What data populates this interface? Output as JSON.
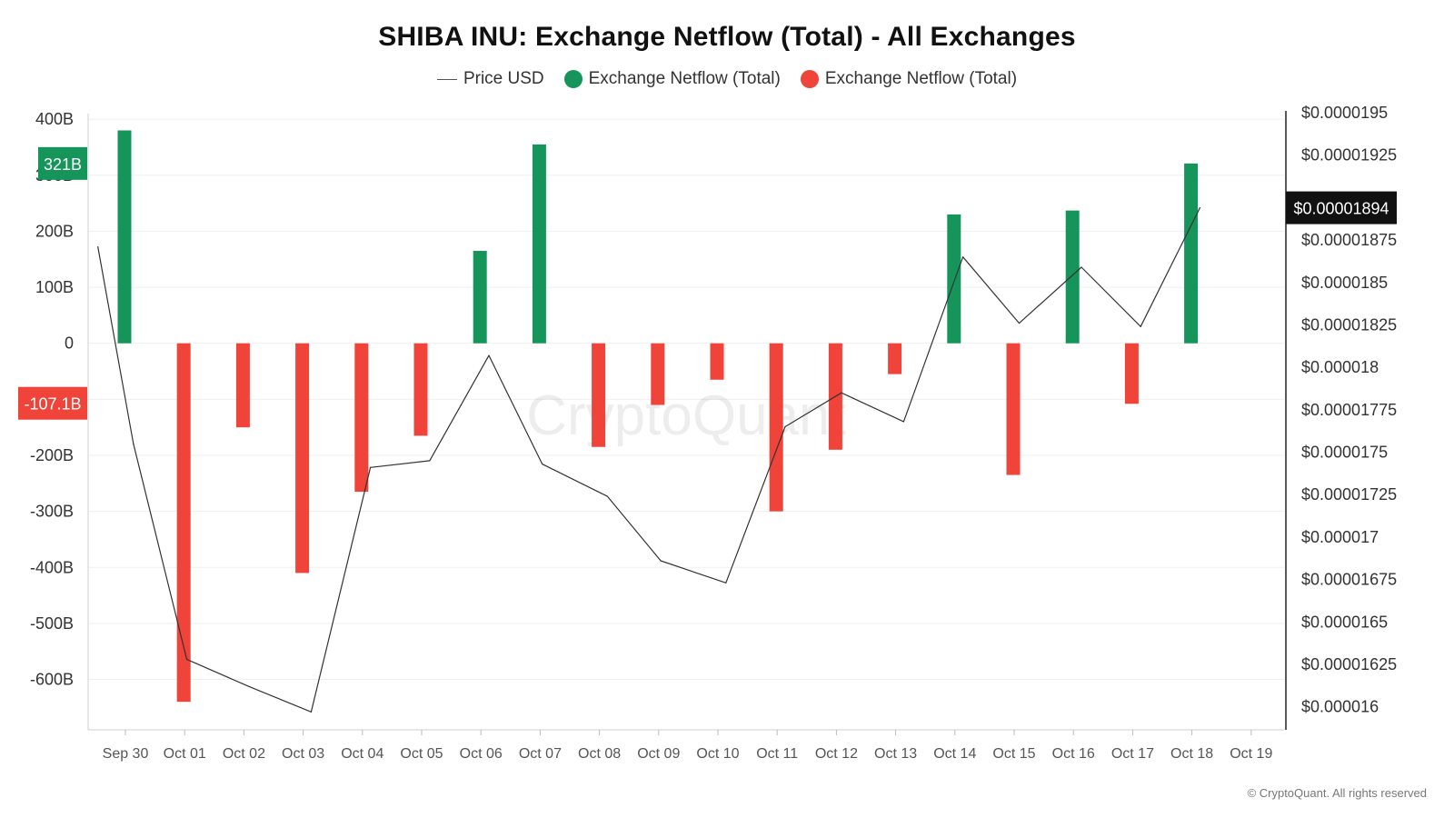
{
  "chart_data": {
    "type": "bar",
    "title": "SHIBA INU: Exchange Netflow (Total) - All Exchanges",
    "legend": [
      {
        "label": "Price USD",
        "kind": "line",
        "color": "#444444"
      },
      {
        "label": "Exchange Netflow (Total)",
        "kind": "dot",
        "color": "#16955A"
      },
      {
        "label": "Exchange Netflow (Total)",
        "kind": "dot",
        "color": "#F0433A"
      }
    ],
    "legend_position": "top-center",
    "categories": [
      "Sep 30",
      "Oct 01",
      "Oct 02",
      "Oct 03",
      "Oct 04",
      "Oct 05",
      "Oct 06",
      "Oct 07",
      "Oct 08",
      "Oct 09",
      "Oct 10",
      "Oct 11",
      "Oct 12",
      "Oct 13",
      "Oct 14",
      "Oct 15",
      "Oct 16",
      "Oct 17",
      "Oct 18",
      "Oct 19"
    ],
    "netflow_series": {
      "name": "Exchange Netflow (Total)",
      "unit": "B",
      "values": [
        380,
        -640,
        -150,
        -410,
        -265,
        -165,
        165,
        355,
        -185,
        -110,
        -65,
        -300,
        -190,
        -55,
        230,
        -235,
        237,
        -108,
        321,
        null
      ]
    },
    "price_series": {
      "name": "Price USD",
      "x": [
        -0.45,
        0.15,
        1.05,
        2.1,
        3.15,
        4.15,
        5.15,
        6.15,
        7.05,
        8.15,
        9.05,
        10.15,
        11.15,
        12.1,
        13.15,
        14.15,
        15.1,
        16.15,
        17.15,
        18.15
      ],
      "values": [
        1.871e-05,
        1.755e-05,
        1.628e-05,
        1.612e-05,
        1.597e-05,
        1.741e-05,
        1.745e-05,
        1.807e-05,
        1.743e-05,
        1.724e-05,
        1.686e-05,
        1.673e-05,
        1.765e-05,
        1.785e-05,
        1.768e-05,
        1.865e-05,
        1.826e-05,
        1.859e-05,
        1.824e-05,
        1.894e-05
      ]
    },
    "y_left": {
      "ylim": [
        -690,
        410
      ],
      "ticks": [
        400,
        300,
        200,
        100,
        0,
        -100,
        -200,
        -300,
        -400,
        -500,
        -600
      ],
      "tick_labels": [
        "400B",
        "300B",
        "200B",
        "100B",
        "0",
        "-100B",
        "-200B",
        "-300B",
        "-400B",
        "-500B",
        "-600B"
      ]
    },
    "y_right": {
      "ylim": [
        1.595e-05,
        1.95e-05
      ],
      "ticks": [
        1.95e-05,
        1.925e-05,
        1.875e-05,
        1.85e-05,
        1.825e-05,
        1.8e-05,
        1.775e-05,
        1.75e-05,
        1.725e-05,
        1.7e-05,
        1.675e-05,
        1.65e-05,
        1.625e-05,
        1.6e-05
      ],
      "tick_labels": [
        "$0.0000195",
        "$0.00001925",
        "$0.00001875",
        "$0.0000185",
        "$0.00001825",
        "$0.000018",
        "$0.00001775",
        "$0.0000175",
        "$0.00001725",
        "$0.000017",
        "$0.00001675",
        "$0.0000165",
        "$0.00001625",
        "$0.000016"
      ]
    },
    "grid": true,
    "badges": {
      "netflow_last": {
        "label": "321B",
        "value": 321,
        "color": "#16955A"
      },
      "netflow_cursor": {
        "label": "-107.1B",
        "value": -107.1,
        "color": "#F0433A"
      },
      "price_last": {
        "label": "$0.00001894",
        "value": 1.894e-05,
        "color": "#111111"
      }
    },
    "colors": {
      "positive": "#16955A",
      "negative": "#F0433A",
      "price_line": "#333333",
      "grid": "#EFEFEF",
      "axis": "#BBBBBB"
    }
  },
  "watermark": "CryptoQuant",
  "copyright": "© CryptoQuant. All rights reserved"
}
